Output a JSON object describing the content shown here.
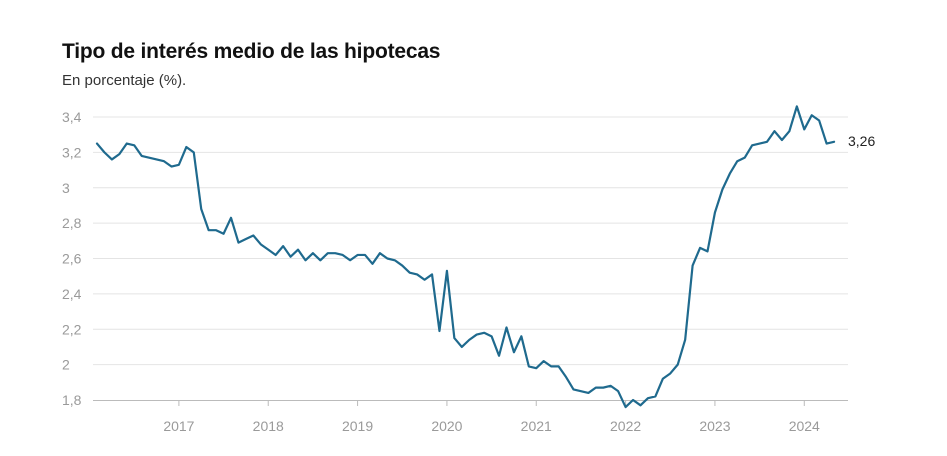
{
  "header": {
    "title": "Tipo de interés medio de las hipotecas",
    "subtitle": "En porcentaje (%)."
  },
  "chart_data": {
    "type": "line",
    "title": "Tipo de interés medio de las hipotecas",
    "subtitle": "En porcentaje (%).",
    "xlabel": "",
    "ylabel": "",
    "ylim": [
      1.8,
      3.4
    ],
    "yticks": [
      "3,4",
      "3,2",
      "3",
      "2,8",
      "2,6",
      "2,4",
      "2,2",
      "2",
      "1,8"
    ],
    "ytick_values": [
      3.4,
      3.2,
      3.0,
      2.8,
      2.6,
      2.4,
      2.2,
      2.0,
      1.8
    ],
    "xticks": [
      "2017",
      "2018",
      "2019",
      "2020",
      "2021",
      "2022",
      "2023",
      "2024"
    ],
    "xtick_values": [
      "2017-01",
      "2018-01",
      "2019-01",
      "2020-01",
      "2021-01",
      "2022-01",
      "2023-01",
      "2024-01"
    ],
    "x_start": "2016-02",
    "grid": "horizontal",
    "legend": "none",
    "line_color": "#1f6a8e",
    "grid_color": "#e4e4e4",
    "axis_color": "#bbbbbb",
    "end_label": "3,26",
    "series": [
      {
        "values": [
          3.25,
          3.2,
          3.16,
          3.19,
          3.25,
          3.24,
          3.18,
          3.17,
          3.16,
          3.15,
          3.12,
          3.13,
          3.23,
          3.2,
          2.88,
          2.76,
          2.76,
          2.74,
          2.83,
          2.69,
          2.71,
          2.73,
          2.68,
          2.65,
          2.62,
          2.67,
          2.61,
          2.65,
          2.59,
          2.63,
          2.59,
          2.63,
          2.63,
          2.62,
          2.59,
          2.62,
          2.62,
          2.57,
          2.63,
          2.6,
          2.59,
          2.56,
          2.52,
          2.51,
          2.48,
          2.51,
          2.19,
          2.53,
          2.15,
          2.1,
          2.14,
          2.17,
          2.18,
          2.16,
          2.05,
          2.21,
          2.07,
          2.16,
          1.99,
          1.98,
          2.02,
          1.99,
          1.99,
          1.93,
          1.86,
          1.85,
          1.84,
          1.87,
          1.87,
          1.88,
          1.85,
          1.76,
          1.8,
          1.77,
          1.81,
          1.82,
          1.92,
          1.95,
          2.0,
          2.14,
          2.56,
          2.66,
          2.64,
          2.86,
          2.99,
          3.08,
          3.15,
          3.17,
          3.24,
          3.25,
          3.26,
          3.32,
          3.27,
          3.32,
          3.46,
          3.33,
          3.41,
          3.38,
          3.25,
          3.26
        ]
      }
    ]
  }
}
